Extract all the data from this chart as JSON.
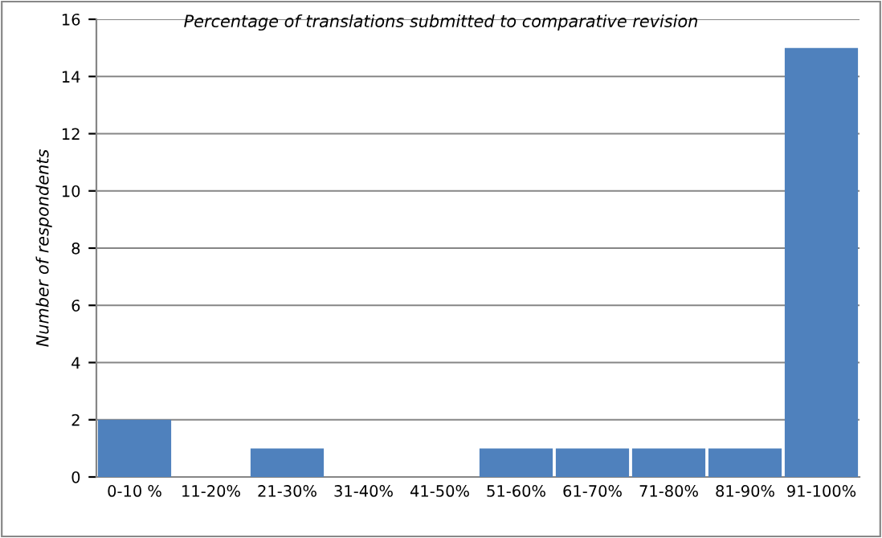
{
  "chart_data": {
    "type": "bar",
    "title": "Percentage of translations submitted to comparative revision",
    "ylabel": "Number of respondents",
    "categories": [
      "0-10 %",
      "11-20%",
      "21-30%",
      "31-40%",
      "41-50%",
      "51-60%",
      "61-70%",
      "71-80%",
      "81-90%",
      "91-100%"
    ],
    "values": [
      2,
      0,
      1,
      0,
      0,
      1,
      1,
      1,
      1,
      15
    ],
    "color": "#4f81bd",
    "ylim": [
      0,
      16
    ],
    "yticks": [
      0,
      2,
      4,
      6,
      8,
      10,
      12,
      14,
      16
    ],
    "grid": "y",
    "legend": false
  }
}
